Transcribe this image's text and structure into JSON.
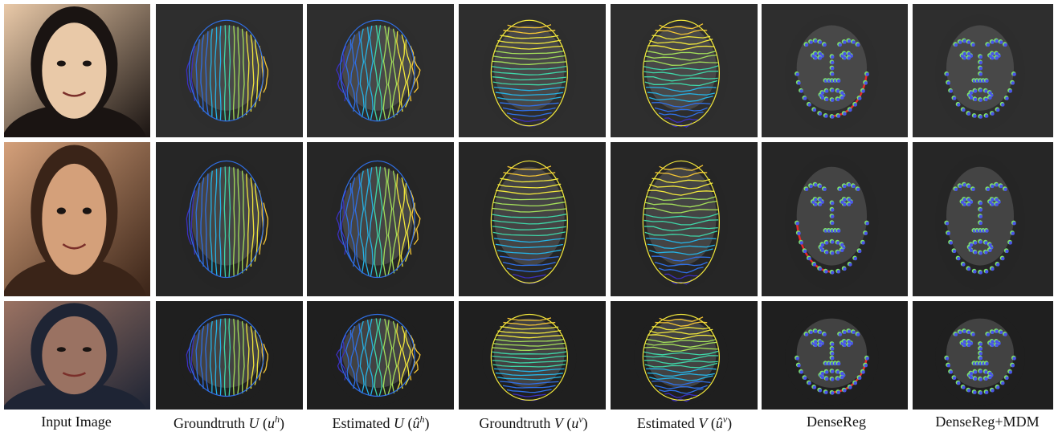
{
  "rows": [
    {
      "subject": "young-girl",
      "photo_tone": [
        "#e9c9a8",
        "#a56d4c",
        "#1a1412"
      ],
      "gray_tone": [
        "#4b4b4b",
        "#2e2e2e"
      ]
    },
    {
      "subject": "woman-on-phone",
      "photo_tone": [
        "#d4a07a",
        "#7a4a30",
        "#3a2418"
      ],
      "gray_tone": [
        "#3c3c3c",
        "#262626"
      ]
    },
    {
      "subject": "old-man-beanie",
      "photo_tone": [
        "#9a7262",
        "#5b4034",
        "#1e2434"
      ],
      "gray_tone": [
        "#2f2f2f",
        "#1f1f1f"
      ]
    }
  ],
  "columns": [
    {
      "key": "input",
      "type": "photo"
    },
    {
      "key": "gt_u",
      "type": "u-lines"
    },
    {
      "key": "est_u",
      "type": "u-lines"
    },
    {
      "key": "gt_v",
      "type": "v-lines"
    },
    {
      "key": "est_v",
      "type": "v-lines"
    },
    {
      "key": "densereg",
      "type": "landmarks"
    },
    {
      "key": "densereg_mdm",
      "type": "landmarks"
    }
  ],
  "captions": {
    "input": "Input Image",
    "gt_u": "Groundtruth U (u^h)",
    "est_u": "Estimated U (û^h)",
    "gt_v": "Groundtruth V (u^v)",
    "est_v": "Estimated V (û^v)",
    "densereg": "DenseReg",
    "densereg_mdm": "DenseReg+MDM"
  },
  "caption_parts": {
    "input": {
      "text": "Input Image"
    },
    "gt_u": {
      "pre": "Groundtruth ",
      "sym": "U",
      "open": " (",
      "base": "u",
      "sup": "h",
      "close": ")"
    },
    "est_u": {
      "pre": "Estimated ",
      "sym": "U",
      "open": " (",
      "base": "û",
      "sup": "h",
      "close": ")"
    },
    "gt_v": {
      "pre": "Groundtruth ",
      "sym": "V",
      "open": " (",
      "base": "u",
      "sup": "v",
      "close": ")"
    },
    "est_v": {
      "pre": "Estimated ",
      "sym": "V",
      "open": " (",
      "base": "û",
      "sup": "v",
      "close": ")"
    },
    "densereg": {
      "text": "DenseReg"
    },
    "densereg_mdm": {
      "text": "DenseReg+MDM"
    }
  },
  "colors": {
    "colormap": [
      "#3b2fbf",
      "#2f6fe6",
      "#25b3e6",
      "#3fd7a8",
      "#a4e05a",
      "#f2e83c",
      "#f6c634"
    ],
    "landmark_blue": "#4a55e8",
    "landmark_green": "#7ee46a",
    "error_red": "#e8262a"
  }
}
